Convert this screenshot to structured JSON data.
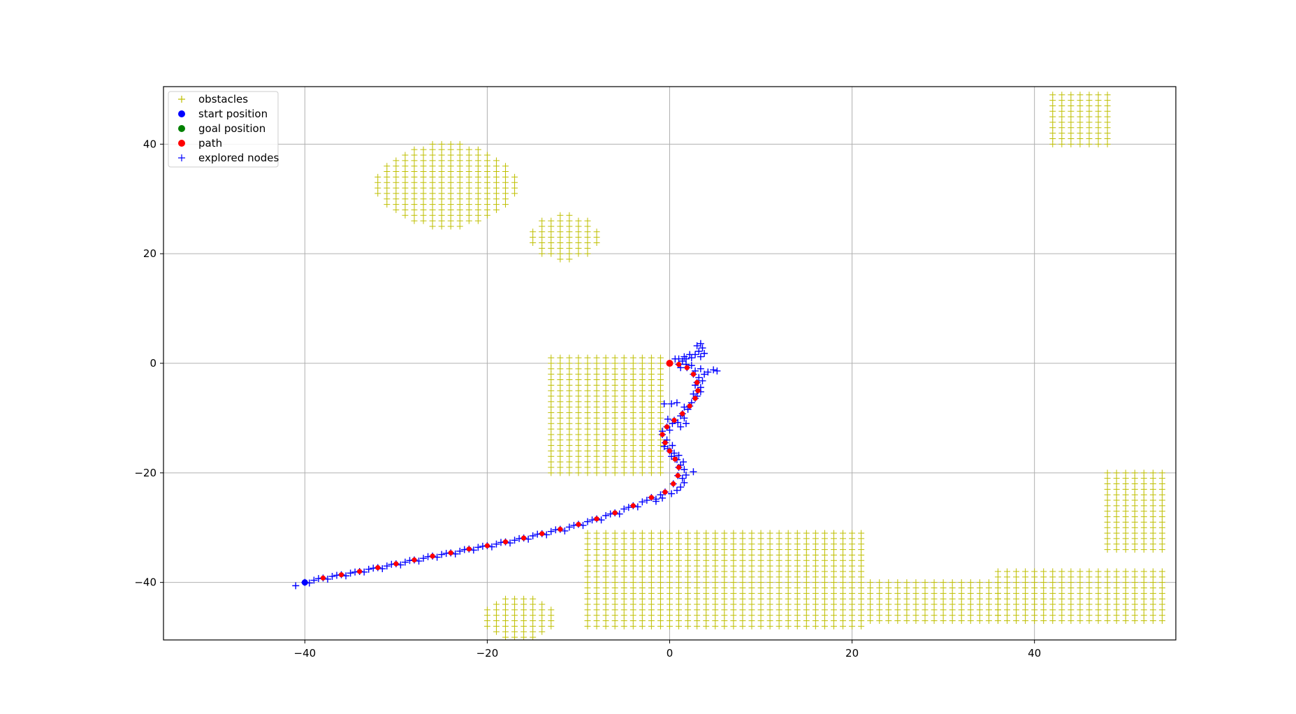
{
  "chart_data": {
    "type": "scatter",
    "title": "",
    "xlabel": "",
    "ylabel": "",
    "xlim": [
      -55.5,
      55.5
    ],
    "ylim": [
      -50.5,
      50.5
    ],
    "xticks": [
      -40,
      -20,
      0,
      20,
      40
    ],
    "yticks": [
      -40,
      -20,
      0,
      20,
      40
    ],
    "xtick_labels": [
      "−40",
      "−20",
      "0",
      "20",
      "40"
    ],
    "ytick_labels": [
      "−40",
      "−20",
      "0",
      "20",
      "40"
    ],
    "grid": true,
    "legend_position": "top-left",
    "legend": [
      {
        "label": "obstacles",
        "marker": "plus",
        "color": "#bfbf00"
      },
      {
        "label": "start position",
        "marker": "circle",
        "color": "#0000ff"
      },
      {
        "label": "goal position",
        "marker": "circle",
        "color": "#008000"
      },
      {
        "label": "path",
        "marker": "circle",
        "color": "#ff0000"
      },
      {
        "label": "explored nodes",
        "marker": "plus",
        "color": "#0000ff"
      }
    ],
    "obstacle_regions": [
      {
        "shape": "ellipse",
        "center": [
          -24.5,
          32.5
        ],
        "radius": [
          7.8,
          7.7
        ]
      },
      {
        "shape": "ellipse",
        "center": [
          -11.5,
          23.0
        ],
        "radius": [
          3.9,
          4.2
        ]
      },
      {
        "shape": "ellipse",
        "center": [
          -16.5,
          -46.5
        ],
        "radius": [
          3.8,
          3.9
        ]
      },
      {
        "shape": "rect",
        "x": [
          -13,
          -0.5
        ],
        "y": [
          -20,
          1
        ]
      },
      {
        "shape": "rect",
        "x": [
          -9,
          21.5
        ],
        "y": [
          -48,
          -31
        ]
      },
      {
        "shape": "rect",
        "x": [
          21.5,
          36
        ],
        "y": [
          -47,
          -40
        ]
      },
      {
        "shape": "rect",
        "x": [
          36,
          54
        ],
        "y": [
          -47,
          -38
        ]
      },
      {
        "shape": "rect",
        "x": [
          48,
          54
        ],
        "y": [
          -34,
          -20
        ]
      },
      {
        "shape": "rect",
        "x": [
          42,
          48
        ],
        "y": [
          40,
          49
        ]
      }
    ],
    "obstacle_spacing": 1,
    "start_position": [
      -40,
      -40
    ],
    "goal_position": [
      0,
      0
    ],
    "path": [
      [
        -40,
        -40
      ],
      [
        -38,
        -39.2
      ],
      [
        -36,
        -38.6
      ],
      [
        -34,
        -38
      ],
      [
        -32,
        -37.3
      ],
      [
        -30,
        -36.6
      ],
      [
        -28,
        -35.9
      ],
      [
        -26,
        -35.2
      ],
      [
        -24,
        -34.6
      ],
      [
        -22,
        -33.9
      ],
      [
        -20,
        -33.3
      ],
      [
        -18,
        -32.6
      ],
      [
        -16,
        -31.9
      ],
      [
        -14,
        -31.1
      ],
      [
        -12,
        -30.3
      ],
      [
        -10,
        -29.4
      ],
      [
        -8,
        -28.4
      ],
      [
        -6,
        -27.3
      ],
      [
        -4,
        -26
      ],
      [
        -2,
        -24.5
      ],
      [
        -0.5,
        -23.5
      ],
      [
        0.4,
        -22
      ],
      [
        0.9,
        -20.5
      ],
      [
        1,
        -19
      ],
      [
        0.6,
        -17.5
      ],
      [
        0,
        -16
      ],
      [
        -0.5,
        -14.5
      ],
      [
        -0.8,
        -13
      ],
      [
        -0.3,
        -11.6
      ],
      [
        0.5,
        -10.4
      ],
      [
        1.4,
        -9.2
      ],
      [
        2.2,
        -7.8
      ],
      [
        2.8,
        -6.4
      ],
      [
        3.1,
        -5
      ],
      [
        3,
        -3.5
      ],
      [
        2.6,
        -2
      ],
      [
        1.9,
        -0.8
      ],
      [
        1,
        -0.2
      ],
      [
        0,
        0
      ]
    ],
    "explored_nodes": [
      [
        -40,
        -40
      ],
      [
        -38,
        -39.2
      ],
      [
        -36,
        -38.6
      ],
      [
        -34,
        -38
      ],
      [
        -32,
        -37.3
      ],
      [
        -30,
        -36.6
      ],
      [
        -28,
        -35.9
      ],
      [
        -26,
        -35.2
      ],
      [
        -24,
        -34.6
      ],
      [
        -22,
        -33.9
      ],
      [
        -20,
        -33.3
      ],
      [
        -18,
        -32.6
      ],
      [
        -16,
        -31.9
      ],
      [
        -14,
        -31.1
      ],
      [
        -12,
        -30.3
      ],
      [
        -10,
        -29.4
      ],
      [
        -8,
        -28.4
      ],
      [
        -6,
        -27.3
      ],
      [
        -4,
        -26
      ],
      [
        -2,
        -24.5
      ],
      [
        -39,
        -39.6
      ],
      [
        -37,
        -38.9
      ],
      [
        -35,
        -38.3
      ],
      [
        -33,
        -37.6
      ],
      [
        -31,
        -37
      ],
      [
        -29,
        -36.3
      ],
      [
        -27,
        -35.6
      ],
      [
        -25,
        -34.9
      ],
      [
        -23,
        -34.3
      ],
      [
        -21,
        -33.6
      ],
      [
        -19,
        -33
      ],
      [
        -17,
        -32.3
      ],
      [
        -15,
        -31.5
      ],
      [
        -13,
        -30.7
      ],
      [
        -11,
        -29.9
      ],
      [
        -9,
        -28.9
      ],
      [
        -7,
        -27.8
      ],
      [
        -5,
        -26.6
      ],
      [
        -3,
        -25.3
      ],
      [
        -1,
        -24
      ],
      [
        -41,
        -40.6
      ],
      [
        -39.5,
        -40.1
      ],
      [
        -37.5,
        -39.4
      ],
      [
        -35.5,
        -38.8
      ],
      [
        -33.5,
        -38.1
      ],
      [
        -31.5,
        -37.5
      ],
      [
        -29.5,
        -36.8
      ],
      [
        -27.5,
        -36.1
      ],
      [
        -25.5,
        -35.4
      ],
      [
        -23.5,
        -34.8
      ],
      [
        -21.5,
        -34.1
      ],
      [
        -19.5,
        -33.5
      ],
      [
        -17.5,
        -32.8
      ],
      [
        -15.5,
        -32.1
      ],
      [
        -13.5,
        -31.3
      ],
      [
        -11.5,
        -30.6
      ],
      [
        -9.5,
        -29.6
      ],
      [
        -7.5,
        -28.6
      ],
      [
        -5.5,
        -27.5
      ],
      [
        -3.5,
        -26.2
      ],
      [
        -1.5,
        -24.8
      ],
      [
        -38.5,
        -39.3
      ],
      [
        -36.5,
        -38.7
      ],
      [
        -34.5,
        -38.1
      ],
      [
        -32.5,
        -37.4
      ],
      [
        -30.5,
        -36.7
      ],
      [
        -28.5,
        -36
      ],
      [
        -26.5,
        -35.3
      ],
      [
        -24.5,
        -34.7
      ],
      [
        -22.5,
        -34
      ],
      [
        -20.5,
        -33.4
      ],
      [
        -18.5,
        -32.7
      ],
      [
        -16.5,
        -32
      ],
      [
        -14.5,
        -31.2
      ],
      [
        -12.5,
        -30.4
      ],
      [
        -10.5,
        -29.6
      ],
      [
        -8.5,
        -28.6
      ],
      [
        -6.5,
        -27.5
      ],
      [
        -4.5,
        -26.3
      ],
      [
        -2.5,
        -25
      ],
      [
        -1.5,
        -25.2
      ],
      [
        -0.8,
        -24.6
      ],
      [
        -0.5,
        -23.5
      ],
      [
        0.4,
        -22
      ],
      [
        0.9,
        -20.5
      ],
      [
        1,
        -19
      ],
      [
        0.6,
        -17.5
      ],
      [
        0,
        -16
      ],
      [
        -0.5,
        -14.5
      ],
      [
        -0.8,
        -13
      ],
      [
        -0.3,
        -11.6
      ],
      [
        0.5,
        -10.4
      ],
      [
        1.4,
        -9.2
      ],
      [
        2.2,
        -7.8
      ],
      [
        2.8,
        -6.4
      ],
      [
        3.1,
        -5
      ],
      [
        3,
        -3.5
      ],
      [
        2.6,
        -2
      ],
      [
        1.9,
        -0.8
      ],
      [
        1,
        -0.2
      ],
      [
        0.2,
        -23.8
      ],
      [
        0.8,
        -23.2
      ],
      [
        1.2,
        -22.6
      ],
      [
        1.6,
        -21.8
      ],
      [
        1.4,
        -21
      ],
      [
        1.8,
        -20.4
      ],
      [
        2.6,
        -19.8
      ],
      [
        1.6,
        -19.4
      ],
      [
        1.2,
        -18.6
      ],
      [
        1.5,
        -18
      ],
      [
        0.8,
        -17.6
      ],
      [
        0.2,
        -17
      ],
      [
        0.5,
        -16.4
      ],
      [
        1,
        -16.8
      ],
      [
        -0.2,
        -15.6
      ],
      [
        0.3,
        -15
      ],
      [
        -0.6,
        -15.2
      ],
      [
        -0.3,
        -14
      ],
      [
        -0.8,
        -12.4
      ],
      [
        0,
        -12.2
      ],
      [
        0.3,
        -11
      ],
      [
        0.9,
        -10.8
      ],
      [
        1.6,
        -10
      ],
      [
        1.2,
        -9.6
      ],
      [
        2,
        -8.4
      ],
      [
        1.6,
        -8
      ],
      [
        2.4,
        -7.2
      ],
      [
        3,
        -6
      ],
      [
        3.4,
        -5.2
      ],
      [
        2.6,
        -5.6
      ],
      [
        3.4,
        -4.4
      ],
      [
        2.8,
        -4
      ],
      [
        3.6,
        -3.2
      ],
      [
        3.2,
        -2.6
      ],
      [
        3.8,
        -2
      ],
      [
        4.2,
        -1.6
      ],
      [
        4.8,
        -1.2
      ],
      [
        5.2,
        -1.4
      ],
      [
        3.4,
        -1
      ],
      [
        2.8,
        -1.4
      ],
      [
        2.4,
        -0.4
      ],
      [
        1.8,
        -0.2
      ],
      [
        1.4,
        0.4
      ],
      [
        1,
        0.8
      ],
      [
        1.8,
        0.8
      ],
      [
        2.4,
        1
      ],
      [
        2.8,
        1.6
      ],
      [
        3.2,
        2.2
      ],
      [
        3.6,
        2.8
      ],
      [
        3.4,
        3.6
      ],
      [
        3,
        3.2
      ],
      [
        3.8,
        1.8
      ],
      [
        3.4,
        1.2
      ],
      [
        2.2,
        1.6
      ],
      [
        1.6,
        1.2
      ],
      [
        0.6,
        0.8
      ],
      [
        1.2,
        -0.8
      ],
      [
        -0.6,
        -7.4
      ],
      [
        0.2,
        -7.4
      ],
      [
        0.8,
        -7.2
      ],
      [
        1.2,
        -11.6
      ],
      [
        1.8,
        -11
      ],
      [
        -0.2,
        -10.2
      ]
    ]
  }
}
